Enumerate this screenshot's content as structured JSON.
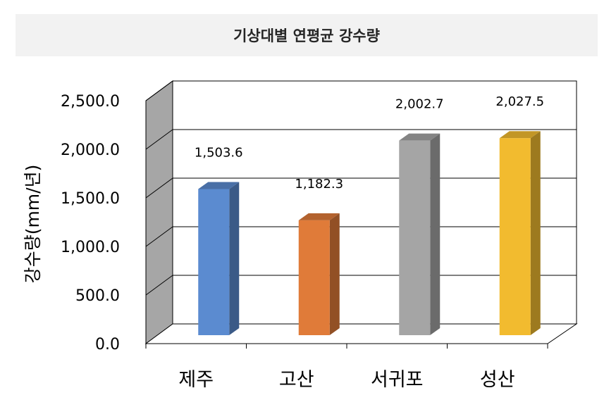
{
  "chart_data": {
    "type": "bar",
    "title": "기상대별 연평균 강수량",
    "xlabel": "",
    "ylabel": "강수량(mm/년)",
    "categories": [
      "제주",
      "고산",
      "서귀포",
      "성산"
    ],
    "values": [
      1503.6,
      1182.3,
      2002.7,
      2027.5
    ],
    "value_labels": [
      "1,503.6",
      "1,182.3",
      "2,002.7",
      "2,027.5"
    ],
    "yticks": [
      "0.0",
      "500.0",
      "1,000.0",
      "1,500.0",
      "2,000.0",
      "2,500.0"
    ],
    "ylim": [
      0,
      2500
    ],
    "grid": true,
    "three_d": true,
    "colors": [
      "#5b8bd0",
      "#e07b39",
      "#a5a5a5",
      "#f2bb2f"
    ]
  }
}
